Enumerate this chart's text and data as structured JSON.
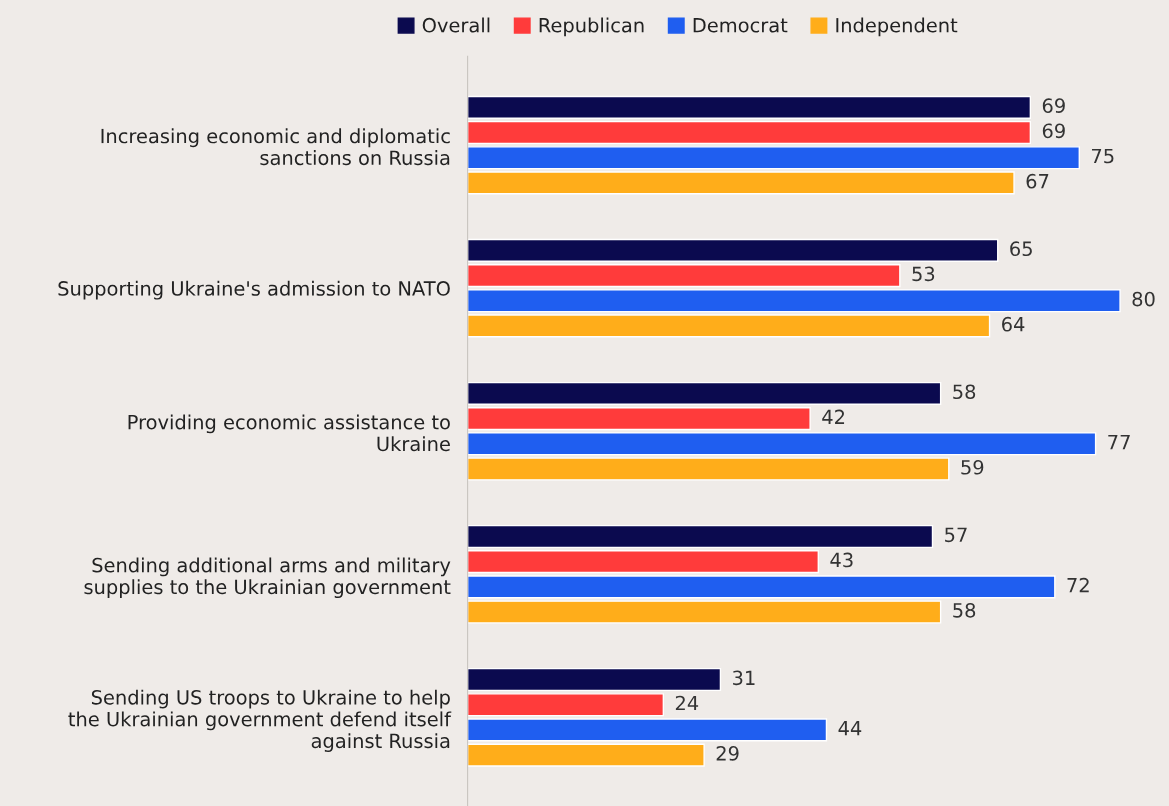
{
  "chart_data": {
    "type": "bar",
    "orientation": "horizontal",
    "data_labels": true,
    "legend": "top",
    "grid": false,
    "categories": [
      "Increasing economic and diplomatic sanctions on Russia",
      "Supporting Ukraine's admission to NATO",
      "Providing economic assistance to Ukraine",
      "Sending additional arms and military supplies to the Ukrainian government",
      "Sending US troops to Ukraine to help the Ukrainian government defend itself against Russia"
    ],
    "series": [
      {
        "name": "Overall",
        "color": "#0b0a4f",
        "values": [
          69,
          65,
          58,
          57,
          31
        ]
      },
      {
        "name": "Republican",
        "color": "#ff3b3b",
        "values": [
          69,
          53,
          42,
          43,
          24
        ]
      },
      {
        "name": "Democrat",
        "color": "#1f5ef0",
        "values": [
          75,
          80,
          77,
          72,
          44
        ]
      },
      {
        "name": "Independent",
        "color": "#ffad1a",
        "values": [
          67,
          64,
          59,
          58,
          29
        ]
      }
    ]
  }
}
